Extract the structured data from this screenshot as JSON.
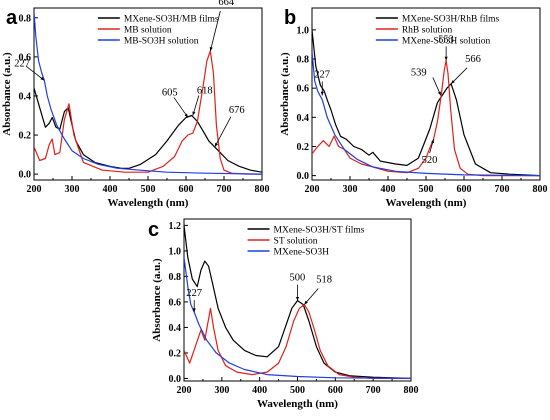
{
  "chart_data": [
    {
      "id": "a",
      "type": "line",
      "panel_label": "a",
      "xlabel": "Wavelength (nm)",
      "ylabel": "Absorbance (a.u.)",
      "xlim": [
        200,
        800
      ],
      "ylim": [
        -0.03,
        0.85
      ],
      "xticks": [
        200,
        300,
        400,
        500,
        600,
        700,
        800
      ],
      "yticks": [
        0.0,
        0.2,
        0.4,
        0.6,
        0.8
      ],
      "legend_position": "top-center",
      "series": [
        {
          "name": "MXene-SO3H/MB films",
          "color": "#000000",
          "x": [
            200,
            215,
            230,
            240,
            248,
            258,
            268,
            280,
            290,
            298,
            310,
            330,
            360,
            400,
            430,
            450,
            480,
            520,
            550,
            580,
            600,
            615,
            630,
            645,
            660,
            675,
            690,
            710,
            740,
            770,
            800
          ],
          "y": [
            0.44,
            0.34,
            0.24,
            0.26,
            0.29,
            0.24,
            0.23,
            0.32,
            0.34,
            0.27,
            0.17,
            0.1,
            0.06,
            0.04,
            0.03,
            0.03,
            0.05,
            0.1,
            0.17,
            0.25,
            0.29,
            0.3,
            0.27,
            0.22,
            0.17,
            0.14,
            0.11,
            0.07,
            0.04,
            0.02,
            0.01
          ]
        },
        {
          "name": "MB solution",
          "color": "#e0201b",
          "x": [
            200,
            215,
            230,
            240,
            248,
            255,
            268,
            280,
            292,
            305,
            330,
            380,
            440,
            500,
            540,
            570,
            590,
            605,
            618,
            630,
            645,
            655,
            664,
            672,
            680,
            690,
            700,
            720,
            760,
            800
          ],
          "y": [
            0.14,
            0.07,
            0.08,
            0.15,
            0.18,
            0.1,
            0.11,
            0.28,
            0.36,
            0.2,
            0.06,
            0.02,
            0.01,
            0.01,
            0.04,
            0.09,
            0.17,
            0.2,
            0.21,
            0.27,
            0.45,
            0.58,
            0.63,
            0.52,
            0.25,
            0.08,
            0.02,
            0.005,
            0.0,
            0.0
          ]
        },
        {
          "name": "MB-SO3H solution",
          "color": "#1f3fe0",
          "x": [
            200,
            205,
            212,
            220,
            227,
            235,
            245,
            260,
            280,
            300,
            330,
            370,
            420,
            480,
            550,
            650,
            800
          ],
          "y": [
            0.83,
            0.7,
            0.58,
            0.52,
            0.48,
            0.4,
            0.33,
            0.25,
            0.18,
            0.12,
            0.08,
            0.05,
            0.03,
            0.02,
            0.01,
            0.005,
            0.0
          ]
        }
      ],
      "annotations": [
        {
          "text": "227",
          "x": 227,
          "y": 0.48
        },
        {
          "text": "605",
          "x": 605,
          "y": 0.29
        },
        {
          "text": "618",
          "x": 618,
          "y": 0.3
        },
        {
          "text": "664",
          "x": 664,
          "y": 0.63
        },
        {
          "text": "676",
          "x": 676,
          "y": 0.14
        }
      ]
    },
    {
      "id": "b",
      "type": "line",
      "panel_label": "b",
      "xlabel": "Wavelength (nm)",
      "ylabel": "Absorbance (a.u.)",
      "xlim": [
        200,
        800
      ],
      "ylim": [
        -0.03,
        1.15
      ],
      "xticks": [
        200,
        300,
        400,
        500,
        600,
        700,
        800
      ],
      "yticks": [
        0.0,
        0.2,
        0.4,
        0.6,
        0.8,
        1.0
      ],
      "legend_position": "top-center",
      "series": [
        {
          "name": "MXene-SO3H/RhB films",
          "color": "#000000",
          "x": [
            200,
            210,
            222,
            232,
            240,
            250,
            262,
            275,
            290,
            310,
            330,
            350,
            360,
            380,
            420,
            450,
            480,
            510,
            530,
            545,
            555,
            566,
            580,
            600,
            630,
            670,
            720,
            800
          ],
          "y": [
            1.0,
            0.75,
            0.62,
            0.58,
            0.52,
            0.45,
            0.35,
            0.27,
            0.25,
            0.2,
            0.18,
            0.14,
            0.16,
            0.1,
            0.08,
            0.07,
            0.12,
            0.32,
            0.5,
            0.56,
            0.6,
            0.63,
            0.52,
            0.28,
            0.08,
            0.02,
            0.01,
            0.0
          ]
        },
        {
          "name": "RhB solution",
          "color": "#e0201b",
          "x": [
            200,
            215,
            230,
            245,
            258,
            270,
            285,
            300,
            330,
            360,
            400,
            450,
            480,
            500,
            510,
            520,
            530,
            540,
            548,
            553,
            558,
            565,
            575,
            590,
            610,
            650,
            800
          ],
          "y": [
            0.15,
            0.2,
            0.24,
            0.2,
            0.27,
            0.2,
            0.18,
            0.12,
            0.08,
            0.06,
            0.03,
            0.02,
            0.05,
            0.12,
            0.19,
            0.25,
            0.37,
            0.55,
            0.72,
            0.79,
            0.7,
            0.45,
            0.18,
            0.05,
            0.01,
            0.0,
            0.0
          ]
        },
        {
          "name": "MXene-SO3H solution",
          "color": "#1f3fe0",
          "x": [
            200,
            207,
            215,
            227,
            240,
            260,
            285,
            320,
            360,
            420,
            500,
            600,
            800
          ],
          "y": [
            0.85,
            0.65,
            0.58,
            0.52,
            0.4,
            0.28,
            0.18,
            0.11,
            0.06,
            0.03,
            0.015,
            0.005,
            0.0
          ]
        }
      ],
      "annotations": [
        {
          "text": "227",
          "x": 227,
          "y": 0.55
        },
        {
          "text": "520",
          "x": 520,
          "y": 0.25
        },
        {
          "text": "539",
          "x": 539,
          "y": 0.55
        },
        {
          "text": "553",
          "x": 553,
          "y": 0.79
        },
        {
          "text": "566",
          "x": 566,
          "y": 0.63
        }
      ]
    },
    {
      "id": "c",
      "type": "line",
      "panel_label": "c",
      "xlabel": "Wavelength (nm)",
      "ylabel": "Absorbance (a.u.)",
      "xlim": [
        200,
        800
      ],
      "ylim": [
        -0.02,
        1.25
      ],
      "xticks": [
        200,
        300,
        400,
        500,
        600,
        700,
        800
      ],
      "yticks": [
        0.0,
        0.2,
        0.4,
        0.6,
        0.8,
        1.0,
        1.2
      ],
      "legend_position": "top-center",
      "series": [
        {
          "name": "MXene-SO3H/ST films",
          "color": "#000000",
          "x": [
            200,
            210,
            222,
            235,
            245,
            255,
            265,
            275,
            290,
            310,
            330,
            360,
            390,
            420,
            450,
            470,
            485,
            500,
            515,
            530,
            550,
            570,
            600,
            640,
            700,
            800
          ],
          "y": [
            1.2,
            0.95,
            0.78,
            0.72,
            0.85,
            0.92,
            0.88,
            0.75,
            0.55,
            0.4,
            0.3,
            0.22,
            0.18,
            0.17,
            0.25,
            0.42,
            0.55,
            0.61,
            0.58,
            0.45,
            0.25,
            0.12,
            0.05,
            0.02,
            0.01,
            0.0
          ]
        },
        {
          "name": "ST solution",
          "color": "#e0201b",
          "x": [
            200,
            215,
            230,
            245,
            255,
            262,
            270,
            278,
            290,
            310,
            340,
            380,
            420,
            450,
            470,
            490,
            505,
            518,
            530,
            545,
            560,
            580,
            610,
            650,
            700,
            800
          ],
          "y": [
            0.22,
            0.12,
            0.25,
            0.38,
            0.3,
            0.42,
            0.55,
            0.4,
            0.22,
            0.1,
            0.05,
            0.03,
            0.05,
            0.12,
            0.25,
            0.45,
            0.55,
            0.58,
            0.52,
            0.38,
            0.22,
            0.1,
            0.03,
            0.01,
            0.0,
            0.0
          ]
        },
        {
          "name": "MXene-SO3H",
          "color": "#1f3fe0",
          "x": [
            200,
            210,
            218,
            227,
            240,
            260,
            285,
            320,
            360,
            420,
            500,
            600,
            800
          ],
          "y": [
            0.95,
            0.72,
            0.58,
            0.52,
            0.42,
            0.3,
            0.2,
            0.12,
            0.07,
            0.03,
            0.015,
            0.005,
            0.0
          ]
        }
      ],
      "annotations": [
        {
          "text": "227",
          "x": 227,
          "y": 0.52
        },
        {
          "text": "500",
          "x": 500,
          "y": 0.61
        },
        {
          "text": "518",
          "x": 518,
          "y": 0.58
        }
      ]
    }
  ]
}
